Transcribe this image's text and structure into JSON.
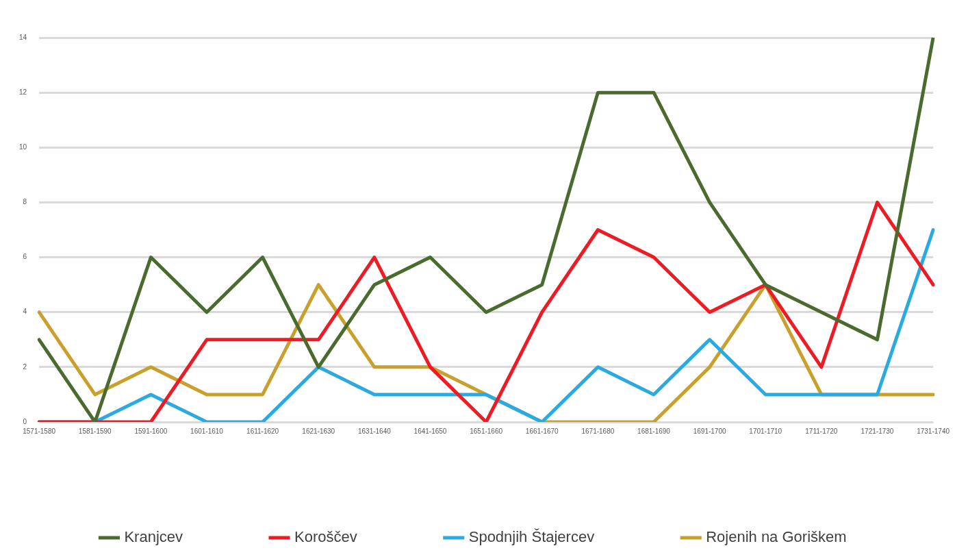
{
  "chart_data": {
    "type": "line",
    "categories": [
      "1571-1580",
      "1581-1590",
      "1591-1600",
      "1601-1610",
      "1611-1620",
      "1621-1630",
      "1631-1640",
      "1641-1650",
      "1651-1660",
      "1661-1670",
      "1671-1680",
      "1681-1690",
      "1691-1700",
      "1701-1710",
      "1711-1720",
      "1721-1730",
      "1731-1740"
    ],
    "series": [
      {
        "name": "Kranjcev",
        "color": "#4a6b2e",
        "values": [
          3,
          0,
          6,
          4,
          6,
          2,
          5,
          6,
          4,
          5,
          12,
          12,
          8,
          5,
          4,
          3,
          14
        ]
      },
      {
        "name": "Koroščev",
        "color": "#ed1c24",
        "values": [
          0,
          0,
          0,
          3,
          3,
          3,
          6,
          2,
          0,
          4,
          7,
          6,
          4,
          5,
          2,
          8,
          5
        ]
      },
      {
        "name": "Spodnjih Štajercev",
        "color": "#29abe2",
        "values": [
          0,
          0,
          1,
          0,
          0,
          2,
          1,
          1,
          1,
          0,
          2,
          1,
          3,
          1,
          1,
          1,
          7
        ]
      },
      {
        "name": "Rojenih na Goriškem",
        "color": "#c9a02c",
        "values": [
          4,
          1,
          2,
          1,
          1,
          5,
          2,
          2,
          1,
          0,
          0,
          0,
          2,
          5,
          1,
          1,
          1
        ]
      }
    ],
    "ylim": [
      0,
      14
    ],
    "yticks": [
      0,
      2,
      4,
      6,
      8,
      10,
      12,
      14
    ],
    "grid": "y",
    "legend": "bottom",
    "marker": "none",
    "line_style": "solid"
  }
}
